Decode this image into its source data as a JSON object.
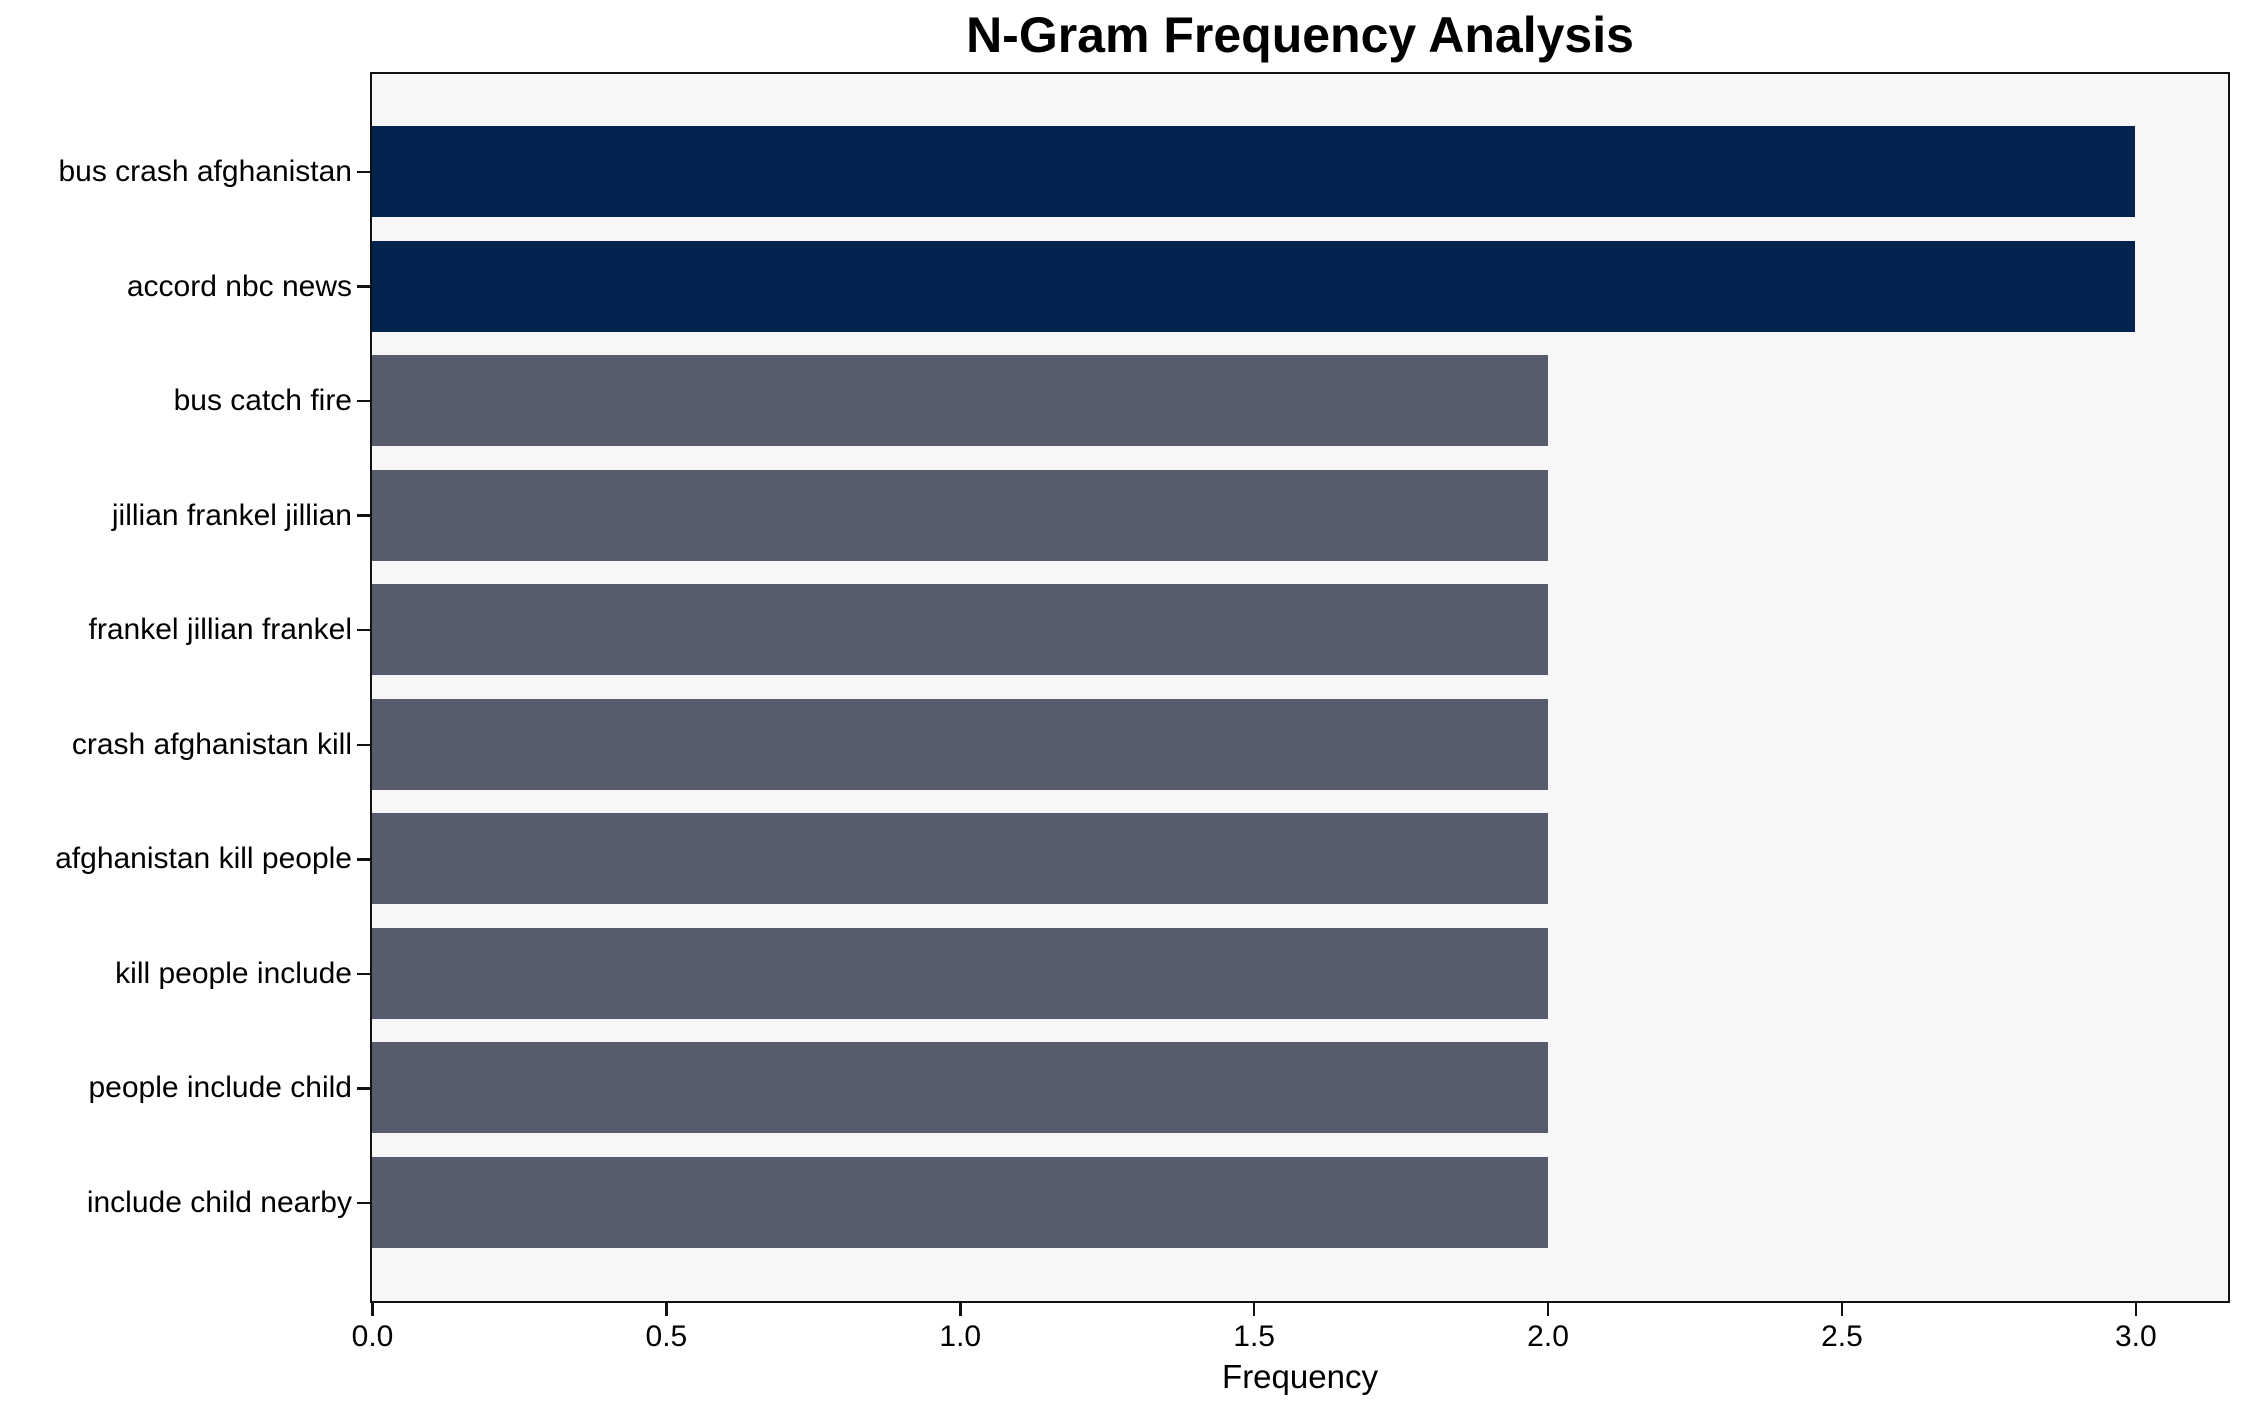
{
  "chart_data": {
    "type": "bar",
    "orientation": "horizontal",
    "title": "N-Gram Frequency Analysis",
    "xlabel": "Frequency",
    "ylabel": "",
    "categories": [
      "bus crash afghanistan",
      "accord nbc news",
      "bus catch fire",
      "jillian frankel jillian",
      "frankel jillian frankel",
      "crash afghanistan kill",
      "afghanistan kill people",
      "kill people include",
      "people include child",
      "include child nearby"
    ],
    "values": [
      3,
      3,
      2,
      2,
      2,
      2,
      2,
      2,
      2,
      2
    ],
    "bar_colors": [
      "high",
      "high",
      "default",
      "default",
      "default",
      "default",
      "default",
      "default",
      "default",
      "default"
    ],
    "xticks": [
      "0.0",
      "0.5",
      "1.0",
      "1.5",
      "2.0",
      "2.5",
      "3.0"
    ],
    "xtick_values": [
      0,
      0.5,
      1,
      1.5,
      2,
      2.5,
      3
    ],
    "xlim": [
      0,
      3.156
    ],
    "grid": false,
    "legend": null,
    "colors": {
      "bar_high": "#02234D",
      "bar_default": "#565C6B",
      "plot_background": "#F7F7F8",
      "figure_background": "#FFFFFF",
      "axis": "#111111",
      "text": "#000000"
    }
  }
}
